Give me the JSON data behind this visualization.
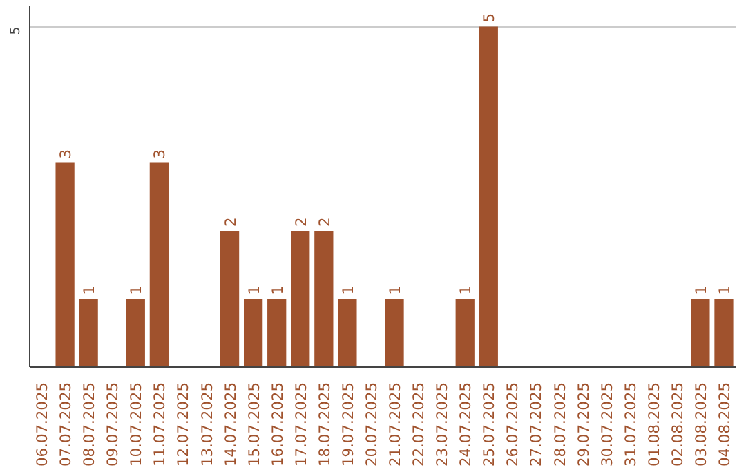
{
  "chart_data": {
    "type": "bar",
    "categories": [
      "06.07.2025",
      "07.07.2025",
      "08.07.2025",
      "09.07.2025",
      "10.07.2025",
      "11.07.2025",
      "12.07.2025",
      "13.07.2025",
      "14.07.2025",
      "15.07.2025",
      "16.07.2025",
      "17.07.2025",
      "18.07.2025",
      "19.07.2025",
      "20.07.2025",
      "21.07.2025",
      "22.07.2025",
      "23.07.2025",
      "24.07.2025",
      "25.07.2025",
      "26.07.2025",
      "27.07.2025",
      "28.07.2025",
      "29.07.2025",
      "30.07.2025",
      "31.07.2025",
      "01.08.2025",
      "02.08.2025",
      "03.08.2025",
      "04.08.2025"
    ],
    "values": [
      0,
      3,
      1,
      0,
      1,
      3,
      0,
      0,
      2,
      1,
      1,
      2,
      2,
      1,
      0,
      1,
      0,
      0,
      1,
      5,
      0,
      0,
      0,
      0,
      0,
      0,
      0,
      0,
      1,
      1
    ],
    "value_labels": [
      null,
      "3",
      "1",
      null,
      "1",
      "3",
      null,
      null,
      "2",
      "1",
      "1",
      "2",
      "2",
      "1",
      null,
      "1",
      null,
      null,
      "1",
      "5",
      null,
      null,
      null,
      null,
      null,
      null,
      null,
      null,
      "1",
      "1"
    ],
    "color": "#a0522d",
    "ylim": [
      0,
      5.3
    ],
    "yticks": [
      5
    ],
    "grid": "y"
  }
}
